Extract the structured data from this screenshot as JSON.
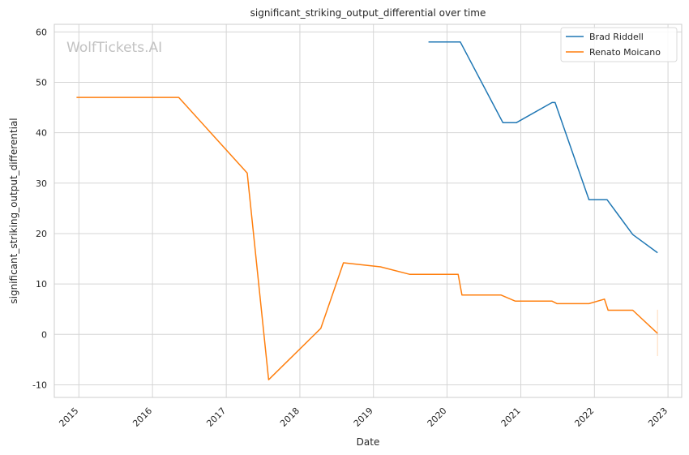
{
  "chart_data": {
    "type": "line",
    "title": "significant_striking_output_differential over time",
    "xlabel": "Date",
    "ylabel": "significant_striking_output_differential",
    "watermark": "WolfTickets.AI",
    "xlim": [
      "2014-09-01",
      "2023-03-10"
    ],
    "ylim": [
      -12.5,
      61.5
    ],
    "x_ticks": [
      "2015",
      "2016",
      "2017",
      "2018",
      "2019",
      "2020",
      "2021",
      "2022",
      "2023"
    ],
    "y_ticks": [
      -10,
      0,
      10,
      20,
      30,
      40,
      50,
      60
    ],
    "grid": true,
    "legend_position": "top-right",
    "series": [
      {
        "name": "Brad Riddell",
        "color": "#1f77b4",
        "points": [
          {
            "x": "2019-10-01",
            "y": 58.0
          },
          {
            "x": "2020-03-07",
            "y": 58.0
          },
          {
            "x": "2020-10-04",
            "y": 42.0
          },
          {
            "x": "2020-12-10",
            "y": 42.0
          },
          {
            "x": "2021-06-05",
            "y": 46.0
          },
          {
            "x": "2021-06-20",
            "y": 46.0
          },
          {
            "x": "2021-12-05",
            "y": 26.7
          },
          {
            "x": "2022-03-05",
            "y": 26.7
          },
          {
            "x": "2022-07-10",
            "y": 19.8
          },
          {
            "x": "2022-11-10",
            "y": 16.2
          }
        ]
      },
      {
        "name": "Renato Moicano",
        "color": "#ff7f0e",
        "points": [
          {
            "x": "2014-12-20",
            "y": 47.0
          },
          {
            "x": "2016-05-10",
            "y": 47.0
          },
          {
            "x": "2017-04-15",
            "y": 32.0
          },
          {
            "x": "2017-07-30",
            "y": -9.0
          },
          {
            "x": "2018-04-15",
            "y": 1.2
          },
          {
            "x": "2018-08-05",
            "y": 14.2
          },
          {
            "x": "2019-02-05",
            "y": 13.4
          },
          {
            "x": "2019-07-01",
            "y": 11.9
          },
          {
            "x": "2020-02-25",
            "y": 11.9
          },
          {
            "x": "2020-03-15",
            "y": 7.8
          },
          {
            "x": "2020-09-25",
            "y": 7.8
          },
          {
            "x": "2020-12-05",
            "y": 6.6
          },
          {
            "x": "2021-06-05",
            "y": 6.6
          },
          {
            "x": "2021-06-30",
            "y": 6.1
          },
          {
            "x": "2021-12-05",
            "y": 6.1
          },
          {
            "x": "2022-02-20",
            "y": 7.0
          },
          {
            "x": "2022-03-10",
            "y": 4.8
          },
          {
            "x": "2022-07-10",
            "y": 4.8
          },
          {
            "x": "2022-11-10",
            "y": 0.2
          }
        ],
        "error_bar": {
          "x": "2022-11-10",
          "low": -4.3,
          "high": 4.9
        }
      }
    ]
  }
}
